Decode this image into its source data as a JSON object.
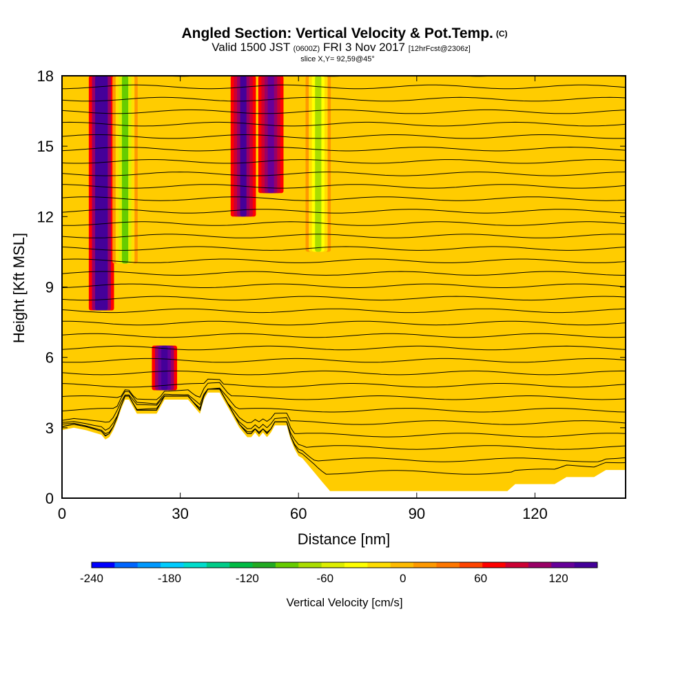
{
  "title": {
    "main": "Angled Section: Vertical Velocity & Pot.Temp.",
    "main_unit": "(C)",
    "line2_a": "Valid 1500 JST",
    "line2_b": "(0600Z)",
    "line2_c": "FRI 3 Nov 2017",
    "line2_d": "[12hrFcst@2306z]",
    "line3": "slice X,Y= 92,59@45°"
  },
  "chart_data": {
    "type": "heatmap",
    "xlabel": "Distance [nm]",
    "ylabel": "Height [Kft MSL]",
    "xlim": [
      0,
      143
    ],
    "ylim": [
      0,
      18
    ],
    "x_ticks": [
      0,
      30,
      60,
      90,
      120
    ],
    "y_ticks": [
      0,
      3,
      6,
      9,
      12,
      15,
      18
    ],
    "grid": false,
    "colorbar": {
      "label": "Vertical Velocity [cm/s]",
      "min": -240,
      "max": 150,
      "step": 15,
      "ticks": [
        -240,
        -180,
        -120,
        -60,
        0,
        60,
        120
      ],
      "colors": [
        "#0000ff",
        "#0066ff",
        "#0099ff",
        "#00ccff",
        "#00ddcc",
        "#00cc88",
        "#00bb44",
        "#22aa22",
        "#66cc00",
        "#aadd00",
        "#ddee00",
        "#ffff00",
        "#ffdd00",
        "#ffbb00",
        "#ff9900",
        "#ff7700",
        "#ff4400",
        "#ff0000",
        "#cc0033",
        "#990066",
        "#660099",
        "#440099"
      ]
    },
    "terrain_profile": {
      "x": [
        0,
        3,
        6,
        8,
        10,
        11,
        12,
        13,
        14,
        15,
        16,
        17,
        18,
        19,
        20,
        21,
        22,
        23,
        24,
        25,
        26,
        27,
        28,
        29,
        30,
        31,
        32,
        33,
        34,
        35,
        36,
        37,
        38,
        39,
        40,
        41,
        42,
        43,
        44,
        45,
        46,
        47,
        48,
        49,
        50,
        51,
        52,
        53,
        54,
        55,
        56,
        57,
        58,
        59,
        60,
        61,
        62,
        63,
        64,
        65,
        66,
        67,
        68,
        70,
        75,
        80,
        85,
        90,
        95,
        100,
        105,
        110,
        113,
        115,
        120,
        125,
        128,
        130,
        135,
        138,
        140,
        143
      ],
      "z": [
        2.9,
        3.0,
        2.9,
        2.8,
        2.7,
        2.5,
        2.6,
        2.9,
        3.3,
        3.8,
        4.2,
        4.2,
        3.9,
        3.6,
        3.6,
        3.6,
        3.6,
        3.6,
        3.6,
        3.9,
        4.2,
        4.2,
        4.2,
        4.2,
        4.2,
        4.2,
        4.2,
        4.0,
        3.8,
        3.6,
        4.2,
        4.5,
        4.5,
        4.5,
        4.5,
        4.2,
        3.9,
        3.6,
        3.3,
        3.0,
        2.8,
        2.6,
        2.6,
        2.8,
        2.6,
        2.8,
        2.6,
        2.8,
        3.1,
        3.1,
        3.1,
        3.1,
        2.5,
        2.1,
        1.8,
        1.7,
        1.5,
        1.3,
        1.1,
        0.9,
        0.7,
        0.5,
        0.3,
        0.3,
        0.3,
        0.3,
        0.3,
        0.3,
        0.3,
        0.3,
        0.3,
        0.3,
        0.3,
        0.6,
        0.6,
        0.6,
        0.9,
        0.9,
        0.9,
        1.2,
        1.2,
        1.2
      ]
    },
    "updrafts": [
      {
        "x": 10,
        "z_bottom": 8,
        "z_top": 18,
        "value": 100
      },
      {
        "x": 26,
        "z_bottom": 4.6,
        "z_top": 6.5,
        "value": 90
      },
      {
        "x": 46,
        "z_bottom": 12,
        "z_top": 18,
        "value": 75
      },
      {
        "x": 53,
        "z_bottom": 13,
        "z_top": 18,
        "value": 65
      }
    ],
    "downdrafts": [
      {
        "x": 16,
        "z_bottom": 10,
        "z_top": 18,
        "value": -110
      },
      {
        "x": 65,
        "z_bottom": 10.5,
        "z_top": 18,
        "value": -100
      }
    ],
    "theta_contour_levels": [
      22,
      24,
      26,
      28,
      30,
      32,
      34,
      36,
      38,
      40,
      42,
      44,
      46,
      48,
      50,
      52,
      54,
      56,
      58,
      60,
      62,
      64,
      66,
      68,
      70,
      72,
      74,
      76,
      78,
      80,
      82,
      84,
      86,
      88
    ]
  }
}
